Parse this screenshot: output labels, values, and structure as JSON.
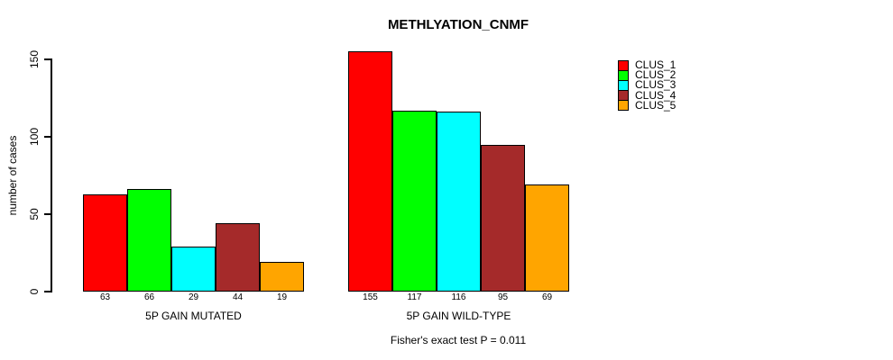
{
  "chart_data": {
    "type": "bar",
    "title": "METHLYATION_CNMF",
    "ylabel": "number of cases",
    "xlabel": "",
    "yticks": [
      0,
      50,
      100,
      150
    ],
    "ylim": [
      0,
      155
    ],
    "grid": false,
    "legend_position": "right",
    "bar_value_labels_shown": true,
    "categories": [
      "5P GAIN MUTATED",
      "5P GAIN WILD-TYPE"
    ],
    "groups": [
      {
        "label": "5P GAIN MUTATED",
        "values": [
          63,
          66,
          29,
          44,
          19
        ]
      },
      {
        "label": "5P GAIN WILD-TYPE",
        "values": [
          155,
          117,
          116,
          95,
          69
        ]
      }
    ],
    "series": [
      {
        "name": "CLUS_1",
        "color": "#FF0000"
      },
      {
        "name": "CLUS_2",
        "color": "#00FF00"
      },
      {
        "name": "CLUS_3",
        "color": "#00FFFF"
      },
      {
        "name": "CLUS_4",
        "color": "#A52A2A"
      },
      {
        "name": "CLUS_5",
        "color": "#FFA500"
      }
    ],
    "border_color": "#000000",
    "footnote": "Fisher's exact test P = 0.011"
  }
}
